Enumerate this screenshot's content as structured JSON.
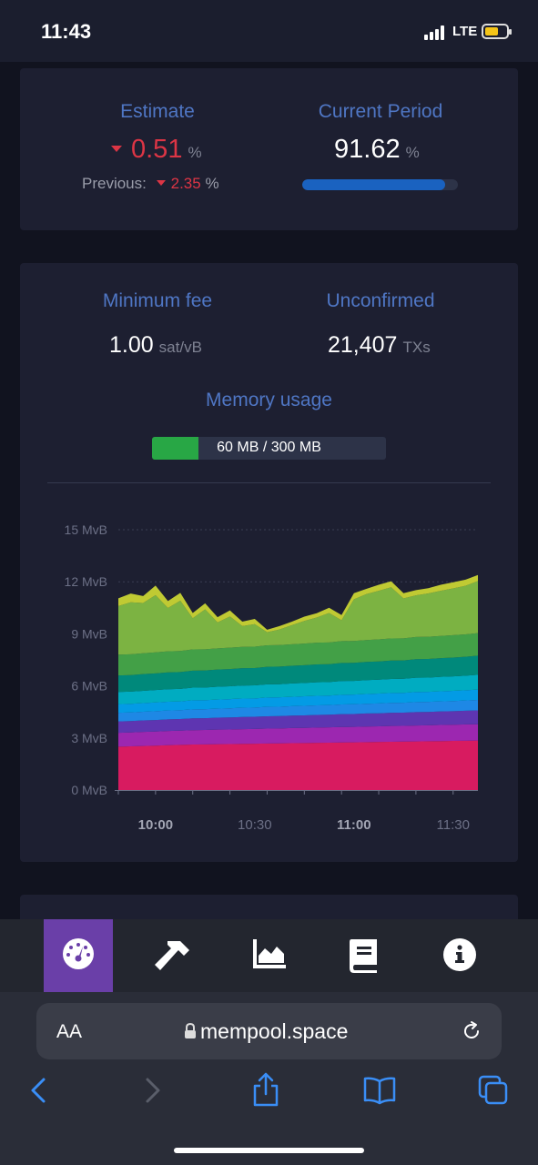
{
  "status_bar": {
    "time": "11:43",
    "network": "LTE",
    "battery_color": "#f5c518"
  },
  "difficulty": {
    "estimate_label": "Estimate",
    "estimate_value": "0.51",
    "estimate_unit": "%",
    "previous_label": "Previous:",
    "previous_value": "2.35",
    "previous_unit": "%",
    "period_label": "Current Period",
    "period_value": "91.62",
    "period_unit": "%",
    "period_progress_pct": 91.62
  },
  "mempool": {
    "min_fee_label": "Minimum fee",
    "min_fee_value": "1.00",
    "min_fee_unit": "sat/vB",
    "unconfirmed_label": "Unconfirmed",
    "unconfirmed_value": "21,407",
    "unconfirmed_unit": "TXs",
    "memory_label": "Memory usage",
    "memory_text": "60 MB / 300 MB",
    "memory_fraction": 0.2
  },
  "chart_data": {
    "type": "area",
    "stacked": true,
    "x": [
      "09:49",
      "09:53",
      "09:56",
      "10:00",
      "10:04",
      "10:08",
      "10:11",
      "10:15",
      "10:19",
      "10:23",
      "10:26",
      "10:30",
      "10:34",
      "10:38",
      "10:41",
      "10:45",
      "10:49",
      "10:53",
      "10:56",
      "11:00",
      "11:04",
      "11:08",
      "11:11",
      "11:15",
      "11:19",
      "11:23",
      "11:26",
      "11:30",
      "11:34",
      "11:38"
    ],
    "x_ticks": [
      "10:00",
      "10:30",
      "11:00",
      "11:30"
    ],
    "x_ticks_bold": [
      "10:00",
      "11:00"
    ],
    "y_ticks": [
      "0 MvB",
      "3 MvB",
      "6 MvB",
      "9 MvB",
      "12 MvB",
      "15 MvB"
    ],
    "ylim": [
      0,
      15
    ],
    "grid": true,
    "series": [
      {
        "color": "#d81b60",
        "values": [
          2.5,
          2.52,
          2.54,
          2.56,
          2.58,
          2.6,
          2.62,
          2.63,
          2.64,
          2.65,
          2.66,
          2.67,
          2.68,
          2.69,
          2.7,
          2.71,
          2.72,
          2.73,
          2.74,
          2.75,
          2.76,
          2.77,
          2.78,
          2.79,
          2.8,
          2.81,
          2.82,
          2.83,
          2.84,
          2.85
        ]
      },
      {
        "color": "#9c27b0",
        "values": [
          0.8,
          0.8,
          0.81,
          0.81,
          0.82,
          0.82,
          0.83,
          0.83,
          0.84,
          0.84,
          0.85,
          0.85,
          0.86,
          0.86,
          0.87,
          0.87,
          0.88,
          0.88,
          0.89,
          0.89,
          0.9,
          0.9,
          0.91,
          0.91,
          0.92,
          0.92,
          0.93,
          0.93,
          0.94,
          0.94
        ]
      },
      {
        "color": "#5e35b1",
        "values": [
          0.65,
          0.65,
          0.66,
          0.66,
          0.67,
          0.67,
          0.68,
          0.68,
          0.69,
          0.69,
          0.7,
          0.7,
          0.71,
          0.71,
          0.72,
          0.72,
          0.73,
          0.73,
          0.74,
          0.74,
          0.75,
          0.75,
          0.76,
          0.76,
          0.77,
          0.77,
          0.78,
          0.78,
          0.79,
          0.8
        ]
      },
      {
        "color": "#1e88e5",
        "values": [
          0.5,
          0.5,
          0.5,
          0.51,
          0.51,
          0.51,
          0.52,
          0.52,
          0.52,
          0.53,
          0.53,
          0.53,
          0.54,
          0.54,
          0.54,
          0.55,
          0.55,
          0.55,
          0.56,
          0.56,
          0.56,
          0.57,
          0.57,
          0.57,
          0.58,
          0.58,
          0.58,
          0.59,
          0.59,
          0.6
        ]
      },
      {
        "color": "#039be5",
        "values": [
          0.5,
          0.5,
          0.5,
          0.51,
          0.51,
          0.51,
          0.52,
          0.52,
          0.52,
          0.53,
          0.53,
          0.53,
          0.54,
          0.54,
          0.54,
          0.55,
          0.55,
          0.55,
          0.56,
          0.56,
          0.56,
          0.57,
          0.57,
          0.57,
          0.58,
          0.58,
          0.58,
          0.59,
          0.59,
          0.6
        ]
      },
      {
        "color": "#00acc1",
        "values": [
          0.7,
          0.7,
          0.71,
          0.71,
          0.72,
          0.72,
          0.73,
          0.73,
          0.74,
          0.74,
          0.75,
          0.75,
          0.76,
          0.76,
          0.77,
          0.77,
          0.78,
          0.78,
          0.79,
          0.79,
          0.8,
          0.8,
          0.81,
          0.81,
          0.82,
          0.82,
          0.83,
          0.83,
          0.84,
          0.85
        ]
      },
      {
        "color": "#00897b",
        "values": [
          0.95,
          0.95,
          0.96,
          0.96,
          0.97,
          0.97,
          0.98,
          0.98,
          0.99,
          0.99,
          1.0,
          1.0,
          1.01,
          1.01,
          1.02,
          1.02,
          1.03,
          1.03,
          1.04,
          1.04,
          1.05,
          1.05,
          1.06,
          1.06,
          1.07,
          1.07,
          1.08,
          1.08,
          1.09,
          1.1
        ]
      },
      {
        "color": "#43a047",
        "values": [
          1.2,
          1.2,
          1.2,
          1.21,
          1.21,
          1.21,
          1.22,
          1.22,
          1.22,
          1.23,
          1.23,
          1.23,
          1.24,
          1.24,
          1.24,
          1.25,
          1.25,
          1.25,
          1.26,
          1.26,
          1.26,
          1.27,
          1.27,
          1.27,
          1.28,
          1.28,
          1.28,
          1.29,
          1.29,
          1.3
        ]
      },
      {
        "color": "#7cb342",
        "values": [
          2.8,
          3.0,
          2.9,
          3.3,
          2.5,
          2.9,
          1.8,
          2.3,
          1.5,
          1.8,
          1.2,
          1.3,
          0.75,
          0.9,
          1.1,
          1.3,
          1.45,
          1.7,
          1.2,
          2.4,
          2.65,
          2.8,
          2.95,
          2.3,
          2.4,
          2.5,
          2.6,
          2.7,
          2.8,
          3.0
        ]
      },
      {
        "color": "#c0ca33",
        "values": [
          0.45,
          0.5,
          0.4,
          0.55,
          0.4,
          0.45,
          0.3,
          0.35,
          0.3,
          0.35,
          0.25,
          0.3,
          0.15,
          0.2,
          0.2,
          0.25,
          0.25,
          0.3,
          0.3,
          0.35,
          0.3,
          0.35,
          0.35,
          0.3,
          0.3,
          0.3,
          0.35,
          0.35,
          0.35,
          0.35
        ]
      }
    ]
  },
  "nav": {
    "items": [
      {
        "icon": "dashboard-gauge-icon",
        "active": true
      },
      {
        "icon": "hammer-icon",
        "active": false
      },
      {
        "icon": "area-chart-icon",
        "active": false
      },
      {
        "icon": "book-icon",
        "active": false
      },
      {
        "icon": "info-icon",
        "active": false
      }
    ],
    "active_color": "#6a3fa8"
  },
  "browser": {
    "text_size_label": "AA",
    "url": "mempool.space"
  }
}
